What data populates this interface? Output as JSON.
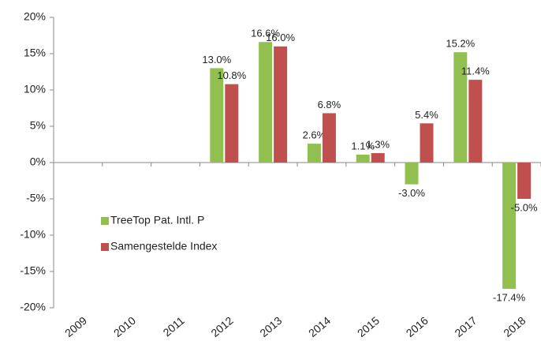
{
  "chart_data": {
    "type": "bar",
    "categories": [
      "2009",
      "2010",
      "2011",
      "2012",
      "2013",
      "2014",
      "2015",
      "2016",
      "2017",
      "2018"
    ],
    "series": [
      {
        "name": "TreeTop Pat. Intl. P",
        "color": "#92c050",
        "values": [
          null,
          null,
          null,
          13.0,
          16.6,
          2.6,
          1.1,
          -3.0,
          15.2,
          -17.4
        ],
        "value_labels": [
          null,
          null,
          null,
          "13.0%",
          "16.6%",
          "2.6%",
          "1.1%",
          "-3.0%",
          "15.2%",
          "-17.4%"
        ]
      },
      {
        "name": "Samengestelde Index",
        "color": "#c0504d",
        "values": [
          null,
          null,
          null,
          10.8,
          16.0,
          6.8,
          1.3,
          5.4,
          11.4,
          -5.0
        ],
        "value_labels": [
          null,
          null,
          null,
          "10.8%",
          "16.0%",
          "6.8%",
          "1.3%",
          "5.4%",
          "11.4%",
          "-5.0%"
        ]
      }
    ],
    "ylim": [
      -20,
      20
    ],
    "yticks": [
      {
        "value": -20,
        "label": "-20%"
      },
      {
        "value": -15,
        "label": "-15%"
      },
      {
        "value": -10,
        "label": "-10%"
      },
      {
        "value": -5,
        "label": "-5%"
      },
      {
        "value": 0,
        "label": "0%"
      },
      {
        "value": 5,
        "label": "5%"
      },
      {
        "value": 10,
        "label": "10%"
      },
      {
        "value": 15,
        "label": "15%"
      },
      {
        "value": 20,
        "label": "20%"
      }
    ],
    "legend": "lower left"
  }
}
